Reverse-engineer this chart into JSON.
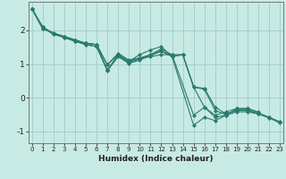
{
  "xlabel": "Humidex (Indice chaleur)",
  "bg_color": "#c8eae4",
  "grid_color": "#a0cccc",
  "line_color": "#2a7a70",
  "marker_color": "#2a7a70",
  "xlim": [
    -0.3,
    23.3
  ],
  "ylim": [
    -1.35,
    2.85
  ],
  "yticks": [
    -1,
    0,
    1,
    2
  ],
  "xticks": [
    0,
    1,
    2,
    3,
    4,
    5,
    6,
    7,
    8,
    9,
    10,
    11,
    12,
    13,
    14,
    15,
    16,
    17,
    18,
    19,
    20,
    21,
    22,
    23
  ],
  "series": [
    {
      "x": [
        0,
        1,
        2,
        3,
        4,
        5,
        6,
        7,
        8,
        9,
        10,
        11,
        12,
        13,
        15,
        16,
        17,
        18,
        19,
        20,
        21
      ],
      "y": [
        2.65,
        2.1,
        1.88,
        1.82,
        1.72,
        1.62,
        1.58,
        0.82,
        1.28,
        1.08,
        1.28,
        1.42,
        1.52,
        1.22,
        -0.82,
        -0.58,
        -0.68,
        -0.52,
        -0.42,
        -0.42,
        -0.48
      ]
    },
    {
      "x": [
        0,
        1,
        2,
        3,
        4,
        5,
        6,
        7,
        8,
        9,
        10,
        11,
        12,
        13,
        15,
        16,
        17,
        18,
        19,
        20,
        21
      ],
      "y": [
        2.65,
        2.1,
        1.92,
        1.82,
        1.72,
        1.62,
        1.58,
        0.98,
        1.32,
        1.12,
        1.18,
        1.22,
        1.28,
        1.28,
        -0.52,
        -0.28,
        -0.52,
        -0.42,
        -0.32,
        -0.32,
        -0.42
      ]
    },
    {
      "x": [
        0,
        1,
        2,
        3,
        4,
        5,
        6,
        7,
        8,
        9,
        10,
        11,
        12,
        13,
        14,
        15,
        16,
        17,
        18,
        19,
        20,
        21,
        22,
        23
      ],
      "y": [
        2.65,
        2.05,
        1.92,
        1.82,
        1.68,
        1.62,
        1.58,
        0.98,
        1.28,
        1.08,
        1.18,
        1.28,
        1.45,
        1.28,
        1.28,
        0.32,
        0.28,
        -0.28,
        -0.48,
        -0.38,
        -0.38,
        -0.48,
        -0.58,
        -0.72
      ]
    },
    {
      "x": [
        0,
        1,
        2,
        3,
        4,
        5,
        6,
        7,
        8,
        9,
        10,
        11,
        12,
        13,
        14,
        15,
        16,
        17,
        18,
        19,
        20,
        21,
        22,
        23
      ],
      "y": [
        2.65,
        2.05,
        1.92,
        1.78,
        1.68,
        1.58,
        1.52,
        0.8,
        1.22,
        1.02,
        1.12,
        1.25,
        1.38,
        1.22,
        1.28,
        0.32,
        -0.28,
        -0.58,
        -0.52,
        -0.32,
        -0.32,
        -0.45,
        -0.58,
        -0.72
      ]
    },
    {
      "x": [
        0,
        1,
        2,
        3,
        4,
        5,
        6,
        7,
        8,
        9,
        10,
        11,
        12,
        13,
        14,
        15,
        16,
        17,
        18,
        19,
        20,
        21,
        22,
        23
      ],
      "y": [
        2.65,
        2.1,
        1.88,
        1.8,
        1.68,
        1.58,
        1.52,
        0.82,
        1.25,
        1.05,
        1.15,
        1.28,
        1.4,
        1.24,
        1.28,
        0.32,
        0.25,
        -0.38,
        -0.5,
        -0.36,
        -0.36,
        -0.48,
        -0.6,
        -0.75
      ]
    }
  ]
}
